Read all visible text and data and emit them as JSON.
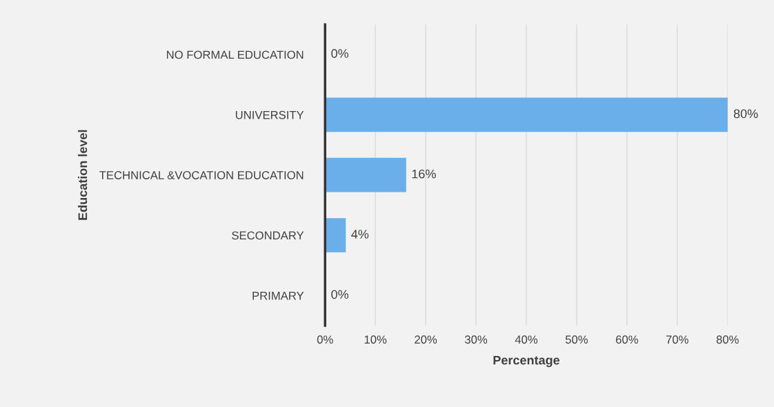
{
  "chart_data": {
    "type": "bar",
    "orientation": "horizontal",
    "categories": [
      "NO FORMAL EDUCATION",
      "UNIVERSITY",
      "TECHNICAL &VOCATION EDUCATION",
      "SECONDARY",
      "PRIMARY"
    ],
    "values": [
      0,
      80,
      16,
      4,
      0
    ],
    "value_labels": [
      "0%",
      "80%",
      "16%",
      "4%",
      "0%"
    ],
    "color": "#6aaeea",
    "xlabel": "Percentage",
    "ylabel": "Education level",
    "xlim": [
      0,
      80
    ],
    "xticks": [
      {
        "value": 0,
        "label": "0%"
      },
      {
        "value": 10,
        "label": "10%"
      },
      {
        "value": 20,
        "label": "20%"
      },
      {
        "value": 30,
        "label": "30%"
      },
      {
        "value": 40,
        "label": "40%"
      },
      {
        "value": 50,
        "label": "50%"
      },
      {
        "value": 60,
        "label": "60%"
      },
      {
        "value": 70,
        "label": "70%"
      },
      {
        "value": 80,
        "label": "80%"
      }
    ],
    "grid": "x"
  }
}
